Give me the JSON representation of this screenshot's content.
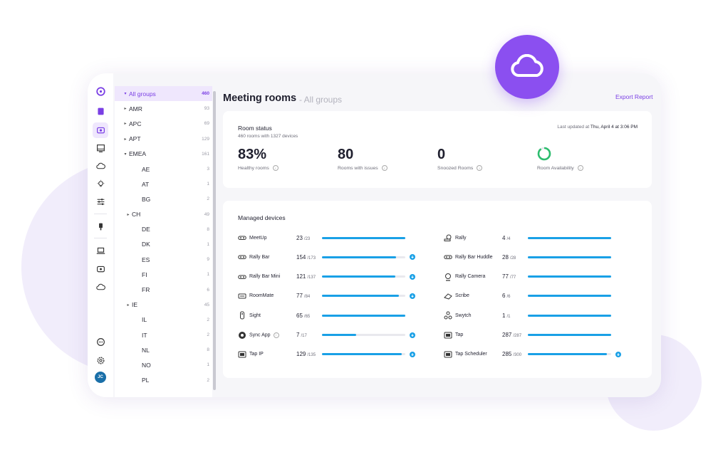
{
  "header": {
    "title": "Meeting rooms",
    "subtitle": "- All groups",
    "export_label": "Export Report"
  },
  "rail": {
    "icons": [
      "logo-icon",
      "book-icon",
      "rooms-icon",
      "monitor-icon",
      "cloud-icon",
      "lightbulb-icon",
      "sliders-icon",
      "plugin-icon",
      "laptop-icon",
      "devices-icon",
      "cloud-icon",
      "support-icon",
      "settings-icon"
    ],
    "avatar_initials": "JC"
  },
  "tree": {
    "items": [
      {
        "label": "All groups",
        "count": "460",
        "caret": "▾",
        "level": 0,
        "selected": true
      },
      {
        "label": "AMR",
        "count": "93",
        "caret": "▸",
        "level": 1
      },
      {
        "label": "APC",
        "count": "69",
        "caret": "▸",
        "level": 1
      },
      {
        "label": "APT",
        "count": "129",
        "caret": "▸",
        "level": 1
      },
      {
        "label": "EMEA",
        "count": "161",
        "caret": "▾",
        "level": 1
      },
      {
        "label": "AE",
        "count": "3",
        "caret": "",
        "level": 2
      },
      {
        "label": "AT",
        "count": "1",
        "caret": "",
        "level": 2
      },
      {
        "label": "BG",
        "count": "2",
        "caret": "",
        "level": 2
      },
      {
        "label": "CH",
        "count": "49",
        "caret": "▸",
        "level": 2
      },
      {
        "label": "DE",
        "count": "8",
        "caret": "",
        "level": 2
      },
      {
        "label": "DK",
        "count": "1",
        "caret": "",
        "level": 2
      },
      {
        "label": "ES",
        "count": "9",
        "caret": "",
        "level": 2
      },
      {
        "label": "FI",
        "count": "1",
        "caret": "",
        "level": 2
      },
      {
        "label": "FR",
        "count": "6",
        "caret": "",
        "level": 2
      },
      {
        "label": "IE",
        "count": "45",
        "caret": "▸",
        "level": 2
      },
      {
        "label": "IL",
        "count": "2",
        "caret": "",
        "level": 2
      },
      {
        "label": "IT",
        "count": "2",
        "caret": "",
        "level": 2
      },
      {
        "label": "NL",
        "count": "8",
        "caret": "",
        "level": 2
      },
      {
        "label": "NO",
        "count": "1",
        "caret": "",
        "level": 2
      },
      {
        "label": "PL",
        "count": "2",
        "caret": "",
        "level": 2
      }
    ]
  },
  "status": {
    "title": "Room status",
    "subtitle": "460 rooms with 1327 devices",
    "updated_prefix": "Last updated at ",
    "updated_time": "Thu, April 4 at 3:06 PM",
    "healthy_value": "83%",
    "healthy_label": "Healthy rooms",
    "issues_value": "80",
    "issues_label": "Rooms with issues",
    "snoozed_value": "0",
    "snoozed_label": "Snoozed Rooms",
    "availability_label": "Room Availability",
    "availability_level": 0.9,
    "availability_color": "#2dbd6e"
  },
  "devices": {
    "title": "Managed devices",
    "bar_color": "#19a0e6",
    "left": [
      {
        "name": "MeetUp",
        "count": "23",
        "total": "/23",
        "level": 1.0,
        "download": false,
        "icon": "camera-bar-icon"
      },
      {
        "name": "Rally Bar",
        "count": "154",
        "total": "/173",
        "level": 0.89,
        "download": true,
        "icon": "camera-bar-icon"
      },
      {
        "name": "Rally Bar Mini",
        "count": "121",
        "total": "/137",
        "level": 0.88,
        "download": true,
        "icon": "camera-bar-icon"
      },
      {
        "name": "RoomMate",
        "count": "77",
        "total": "/84",
        "level": 0.92,
        "download": true,
        "icon": "roommate-icon"
      },
      {
        "name": "Sight",
        "count": "65",
        "total": "/65",
        "level": 1.0,
        "download": false,
        "icon": "sight-icon"
      },
      {
        "name": "Sync App",
        "count": "7",
        "total": "/17",
        "level": 0.41,
        "download": true,
        "icon": "sync-icon",
        "info": "i"
      },
      {
        "name": "Tap IP",
        "count": "129",
        "total": "/135",
        "level": 0.96,
        "download": true,
        "icon": "tablet-icon"
      }
    ],
    "right": [
      {
        "name": "Rally",
        "count": "4",
        "total": "/4",
        "level": 1.0,
        "download": false,
        "icon": "ptz-camera-icon"
      },
      {
        "name": "Rally Bar Huddle",
        "count": "28",
        "total": "/28",
        "level": 1.0,
        "download": false,
        "icon": "camera-bar-icon"
      },
      {
        "name": "Rally Camera",
        "count": "77",
        "total": "/77",
        "level": 1.0,
        "download": false,
        "icon": "webcam-icon"
      },
      {
        "name": "Scribe",
        "count": "6",
        "total": "/6",
        "level": 1.0,
        "download": false,
        "icon": "scribe-icon"
      },
      {
        "name": "Swytch",
        "count": "1",
        "total": "/1",
        "level": 1.0,
        "download": false,
        "icon": "swytch-icon"
      },
      {
        "name": "Tap",
        "count": "287",
        "total": "/287",
        "level": 1.0,
        "download": false,
        "icon": "tablet-icon"
      },
      {
        "name": "Tap Scheduler",
        "count": "285",
        "total": "/300",
        "level": 0.95,
        "download": true,
        "icon": "tablet-icon"
      }
    ]
  }
}
